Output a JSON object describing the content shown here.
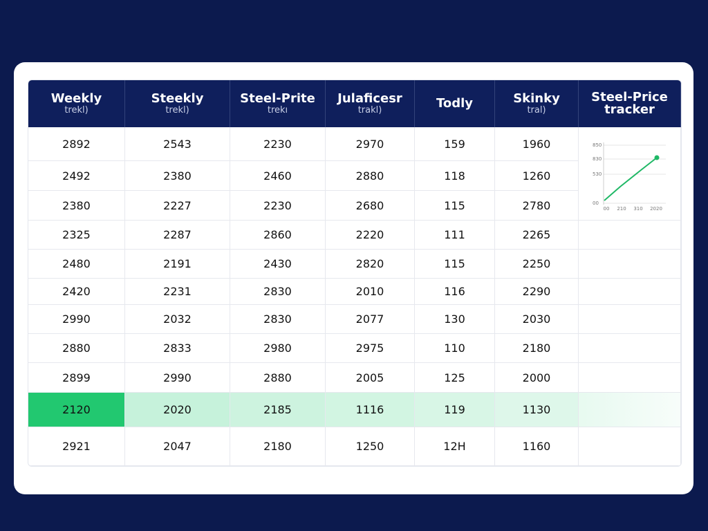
{
  "header": {
    "columns": [
      {
        "title": "Weekly",
        "subtitle": "trekl)"
      },
      {
        "title": "Steekly",
        "subtitle": "trekl)"
      },
      {
        "title": "Steel-Prite",
        "subtitle": "trekı"
      },
      {
        "title": "Julaficesr",
        "subtitle": "trakl)"
      },
      {
        "title": "Todly"
      },
      {
        "title": "Skinky",
        "subtitle": "tral)"
      },
      {
        "title": "Steel-Price",
        "subtitle": "tracker"
      }
    ]
  },
  "table": {
    "highlight_row": 9,
    "rows": [
      [
        "2892",
        "2543",
        "2230",
        "2970",
        "159",
        "1960"
      ],
      [
        "2492",
        "2380",
        "2460",
        "2880",
        "118",
        "1260"
      ],
      [
        "2380",
        "2227",
        "2230",
        "2680",
        "115",
        "2780"
      ],
      [
        "2325",
        "2287",
        "2860",
        "2220",
        "111",
        "2265"
      ],
      [
        "2480",
        "2191",
        "2430",
        "2820",
        "115",
        "2250"
      ],
      [
        "2420",
        "2231",
        "2830",
        "2010",
        "116",
        "2290"
      ],
      [
        "2990",
        "2032",
        "2830",
        "2077",
        "130",
        "2030"
      ],
      [
        "2880",
        "2833",
        "2980",
        "2975",
        "110",
        "2180"
      ],
      [
        "2899",
        "2990",
        "2880",
        "2005",
        "125",
        "2000"
      ],
      [
        "2120",
        "2020",
        "2185",
        "1116",
        "119",
        "1130"
      ],
      [
        "2921",
        "2047",
        "2180",
        "1250",
        "12H",
        "1160"
      ]
    ]
  },
  "mini_chart": {
    "y_labels": [
      "850",
      "830",
      "530",
      "00"
    ],
    "x_labels": [
      "00",
      "210",
      "310",
      "2020"
    ]
  }
}
